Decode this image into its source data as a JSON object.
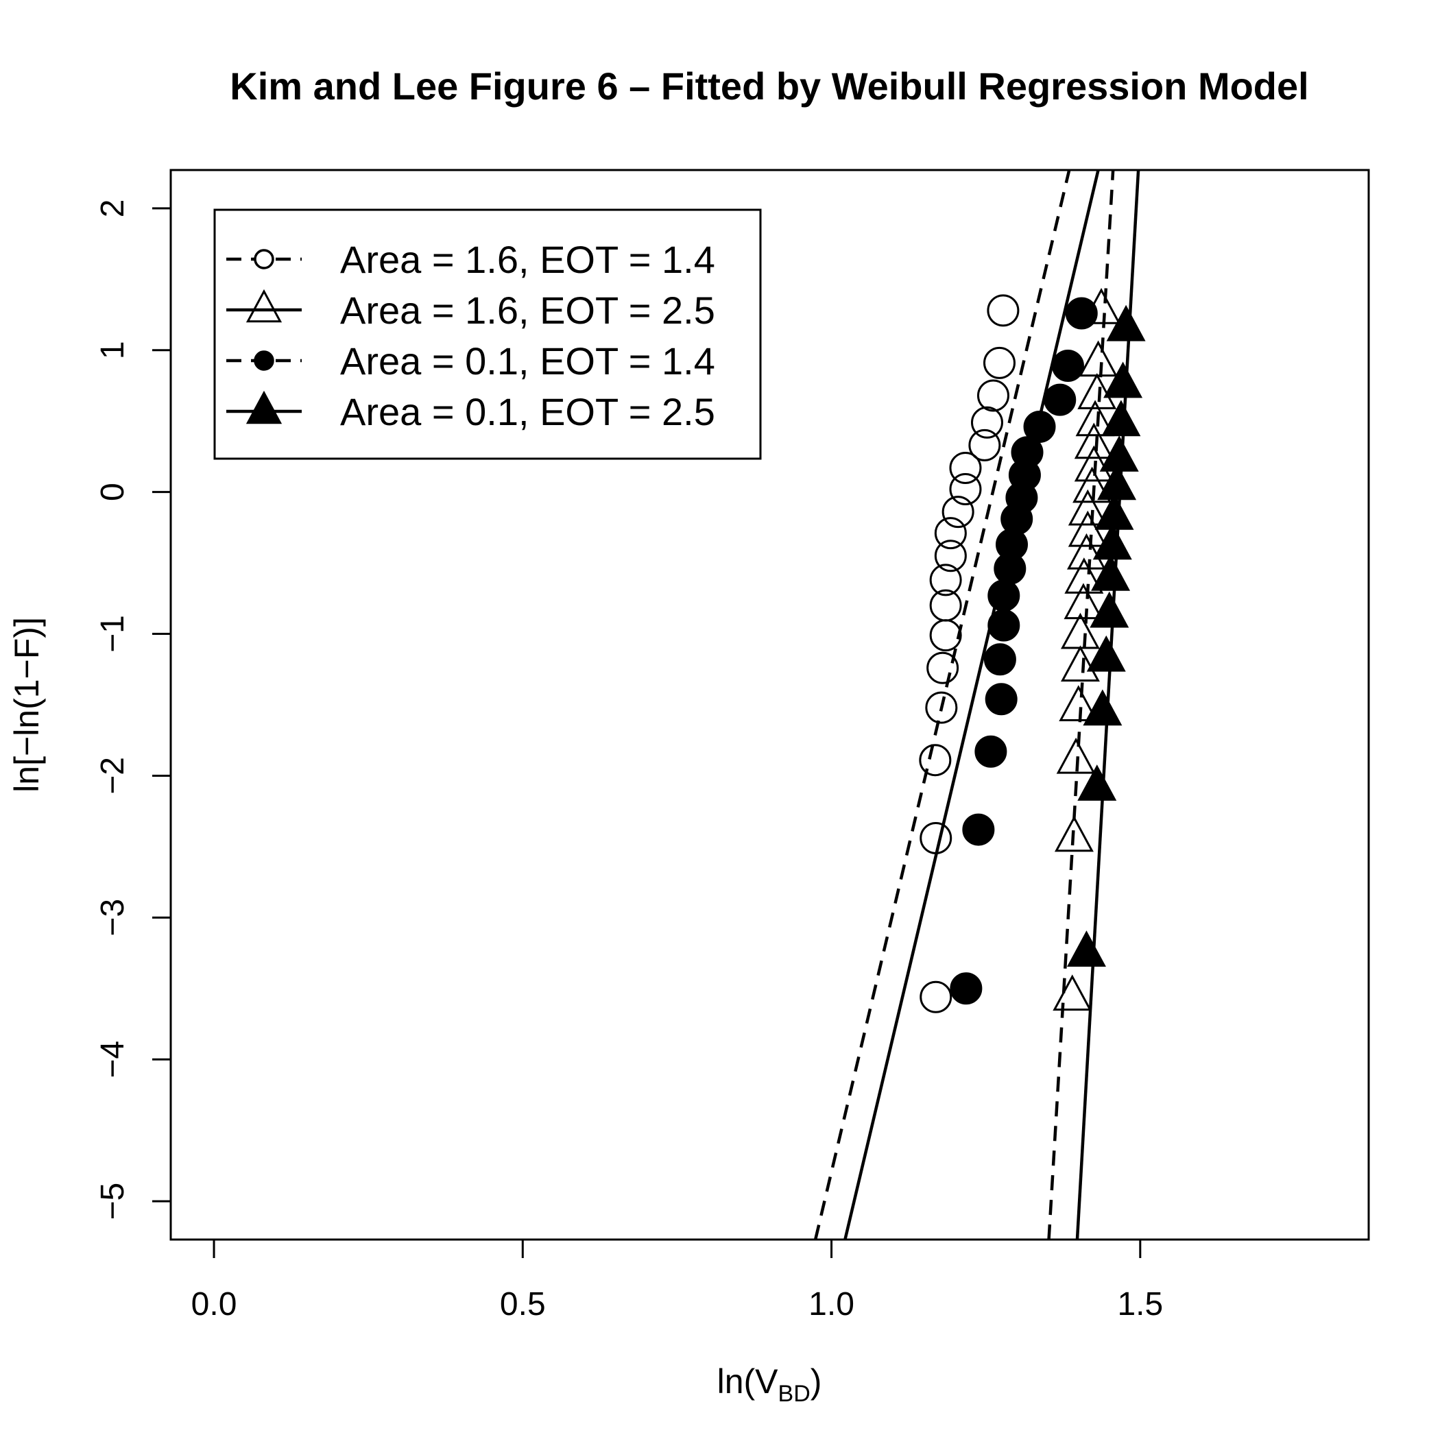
{
  "chart_data": {
    "type": "scatter",
    "title": "Kim and Lee Figure 6 – Fitted by Weibull Regression Model",
    "xlabel": {
      "main": "ln(V",
      "sub": "BD",
      "tail": ")"
    },
    "ylabel": "ln[−ln(1−F)]",
    "xlim": [
      -0.07,
      1.87
    ],
    "ylim": [
      -5.27,
      2.27
    ],
    "x_ticks": [
      0.0,
      0.5,
      1.0,
      1.5
    ],
    "x_tick_labels": [
      "0.0",
      "0.5",
      "1.0",
      "1.5"
    ],
    "y_ticks": [
      -5,
      -4,
      -3,
      -2,
      -1,
      0,
      1,
      2
    ],
    "y_tick_labels": [
      "−5",
      "−4",
      "−3",
      "−2",
      "−1",
      "0",
      "1",
      "2"
    ],
    "grid": false,
    "legend_position": "top-left",
    "series": [
      {
        "name": "Area = 1.6, EOT = 1.4",
        "marker": "open-circle",
        "line": "dashed",
        "fit_line": [
          [
            0.974,
            -5.27
          ],
          [
            1.385,
            2.27
          ]
        ],
        "points": [
          [
            1.169,
            -3.56
          ],
          [
            1.169,
            -2.44
          ],
          [
            1.168,
            -1.89
          ],
          [
            1.178,
            -1.52
          ],
          [
            1.18,
            -1.24
          ],
          [
            1.185,
            -1.01
          ],
          [
            1.185,
            -0.8
          ],
          [
            1.185,
            -0.62
          ],
          [
            1.193,
            -0.45
          ],
          [
            1.193,
            -0.29
          ],
          [
            1.205,
            -0.14
          ],
          [
            1.217,
            0.02
          ],
          [
            1.217,
            0.17
          ],
          [
            1.248,
            0.33
          ],
          [
            1.252,
            0.49
          ],
          [
            1.262,
            0.68
          ],
          [
            1.272,
            0.91
          ],
          [
            1.278,
            1.28
          ]
        ]
      },
      {
        "name": "Area = 1.6, EOT = 2.5",
        "marker": "open-triangle",
        "line": "solid",
        "fit_line": [
          [
            1.022,
            -5.27
          ],
          [
            1.432,
            2.27
          ]
        ],
        "points": [
          [
            1.39,
            -3.56
          ],
          [
            1.393,
            -2.44
          ],
          [
            1.396,
            -1.89
          ],
          [
            1.4,
            -1.52
          ],
          [
            1.403,
            -1.24
          ],
          [
            1.403,
            -1.01
          ],
          [
            1.408,
            -0.8
          ],
          [
            1.409,
            -0.62
          ],
          [
            1.413,
            -0.45
          ],
          [
            1.415,
            -0.29
          ],
          [
            1.415,
            -0.14
          ],
          [
            1.422,
            0.02
          ],
          [
            1.425,
            0.17
          ],
          [
            1.425,
            0.33
          ],
          [
            1.427,
            0.49
          ],
          [
            1.43,
            0.68
          ],
          [
            1.432,
            0.91
          ],
          [
            1.437,
            1.28
          ]
        ]
      },
      {
        "name": "Area = 0.1, EOT = 1.4",
        "marker": "filled-circle",
        "line": "dashed",
        "fit_line": [
          [
            1.352,
            -5.27
          ],
          [
            1.456,
            2.27
          ]
        ],
        "points": [
          [
            1.218,
            -3.5
          ],
          [
            1.238,
            -2.38
          ],
          [
            1.258,
            -1.83
          ],
          [
            1.275,
            -1.46
          ],
          [
            1.273,
            -1.18
          ],
          [
            1.279,
            -0.94
          ],
          [
            1.279,
            -0.73
          ],
          [
            1.289,
            -0.54
          ],
          [
            1.292,
            -0.37
          ],
          [
            1.3,
            -0.19
          ],
          [
            1.308,
            -0.04
          ],
          [
            1.313,
            0.12
          ],
          [
            1.317,
            0.28
          ],
          [
            1.337,
            0.46
          ],
          [
            1.37,
            0.65
          ],
          [
            1.383,
            0.89
          ],
          [
            1.405,
            1.26
          ]
        ]
      },
      {
        "name": "Area = 0.1, EOT = 2.5",
        "marker": "filled-triangle",
        "line": "solid",
        "fit_line": [
          [
            1.398,
            -5.27
          ],
          [
            1.497,
            2.27
          ]
        ],
        "points": [
          [
            1.413,
            -3.25
          ],
          [
            1.43,
            -2.08
          ],
          [
            1.439,
            -1.55
          ],
          [
            1.445,
            -1.17
          ],
          [
            1.45,
            -0.86
          ],
          [
            1.452,
            -0.6
          ],
          [
            1.455,
            -0.38
          ],
          [
            1.458,
            -0.17
          ],
          [
            1.462,
            0.04
          ],
          [
            1.466,
            0.24
          ],
          [
            1.469,
            0.49
          ],
          [
            1.472,
            0.76
          ],
          [
            1.477,
            1.16
          ]
        ]
      }
    ]
  }
}
